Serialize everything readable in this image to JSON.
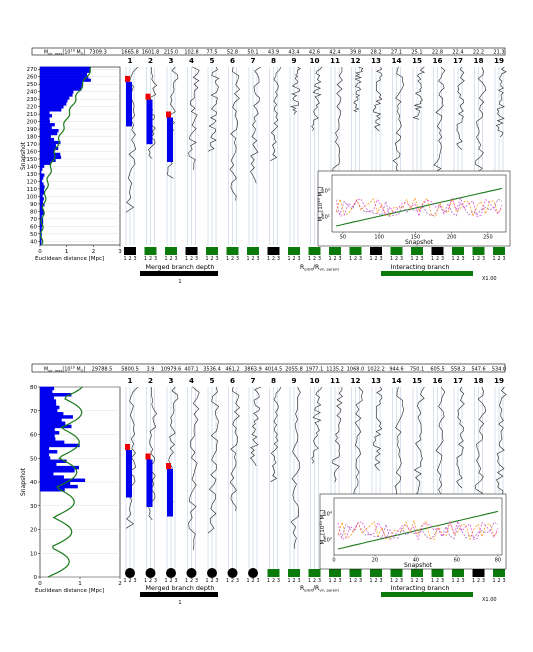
{
  "chart_data": [
    {
      "type": "merger-tree-panel",
      "header_label": "M",
      "header_label_sub": "vir, max",
      "header_unit": "[10",
      "header_unit_exp": "10",
      "header_unit_tail": " M",
      "header_unit_sun": "⊙",
      "header_close": "]",
      "header_values": [
        "7309.3",
        "1665.8",
        "1601.8",
        "215.0",
        "102.8",
        "77.5",
        "52.8",
        "50.1",
        "43.9",
        "43.4",
        "42.6",
        "42.4",
        "39.8",
        "28.2",
        "27.1",
        "25.1",
        "22.8",
        "22.4",
        "22.2",
        "21.3"
      ],
      "branch_numbers": [
        "1",
        "2",
        "3",
        "4",
        "5",
        "6",
        "7",
        "8",
        "9",
        "10",
        "11",
        "12",
        "13",
        "14",
        "15",
        "16",
        "17",
        "18",
        "19"
      ],
      "ylabel": "Snapshot",
      "y_ticks": [
        "40",
        "50",
        "60",
        "70",
        "80",
        "90",
        "100",
        "110",
        "120",
        "130",
        "140",
        "150",
        "160",
        "170",
        "180",
        "190",
        "200",
        "210",
        "220",
        "230",
        "240",
        "250",
        "260",
        "270"
      ],
      "ylim": [
        35,
        273
      ],
      "xlabel": "Euclidean distance [Mpc]",
      "x_ticks": [
        "0",
        "1",
        "2",
        "3"
      ],
      "xlim": [
        0,
        3
      ],
      "orbit_ticks": [
        "1",
        "2",
        "3"
      ],
      "orbit_label": "R",
      "orbit_label_sub": "orbit",
      "orbit_label_mid": "/R",
      "orbit_label_sub2": "vir, parent",
      "merge_markers": [
        "square",
        "square",
        "square",
        "square",
        "square",
        "square",
        "square",
        "square",
        "square",
        "square",
        "square",
        "square",
        "square",
        "square",
        "square",
        "square",
        "square",
        "square",
        "square"
      ],
      "merge_colors": [
        "#000000",
        "#0a7a0a",
        "#0a7a0a",
        "#000000",
        "#0a7a0a",
        "#0a7a0a",
        "#0a7a0a",
        "#000000",
        "#0a7a0a",
        "#0a7a0a",
        "#0a7a0a",
        "#0a7a0a",
        "#000000",
        "#0a7a0a",
        "#0a7a0a",
        "#000000",
        "#0a7a0a",
        "#0a7a0a",
        "#0a7a0a"
      ],
      "legend_merged": "Merged branch depth",
      "legend_merged_value": "1",
      "legend_interacting": "Interacting branch",
      "legend_interacting_value": "X1.00",
      "inset": {
        "xlabel": "Snapshot",
        "x_ticks": [
          "50",
          "100",
          "150",
          "200",
          "250"
        ],
        "xlim": [
          35,
          275
        ],
        "ylabel": "M",
        "ylabel_sub": "vir",
        "ylabel_unit": "[10",
        "ylabel_exp": "10",
        "ylabel_tail": " M",
        "ylabel_sun": "⊙",
        "ylabel_close": "]",
        "y_ticks": [
          {
            "base": "10",
            "exp": "1"
          },
          {
            "base": "10",
            "exp": "3"
          }
        ],
        "log_y": true,
        "series_colors": [
          "#1a7a1a",
          "#9b59b6",
          "#ff8c00",
          "#e040e0"
        ]
      },
      "distribution_max": 2.6
    },
    {
      "type": "merger-tree-panel",
      "header_label": "M",
      "header_label_sub": "vir, max",
      "header_unit": "[10",
      "header_unit_exp": "10",
      "header_unit_tail": " M",
      "header_unit_sun": "⊙",
      "header_close": "]",
      "header_values": [
        "29788.5",
        "5800.5",
        "3.9",
        "10979.6",
        "407.1",
        "3536.4",
        "461.2",
        "3863.9",
        "4014.5",
        "2055.8",
        "1977.1",
        "1135.2",
        "1068.0",
        "1022.2",
        "944.6",
        "750.1",
        "605.5",
        "558.3",
        "547.6",
        "534.0"
      ],
      "branch_numbers": [
        "1",
        "2",
        "3",
        "4",
        "5",
        "6",
        "7",
        "8",
        "9",
        "10",
        "11",
        "12",
        "13",
        "14",
        "15",
        "16",
        "17",
        "18",
        "19"
      ],
      "ylabel": "Snapshot",
      "y_ticks": [
        "0",
        "10",
        "20",
        "30",
        "40",
        "50",
        "60",
        "70",
        "80"
      ],
      "ylim": [
        0,
        80
      ],
      "xlabel": "Euclidean distance [Mpc]",
      "x_ticks": [
        "0",
        "1",
        "2"
      ],
      "xlim": [
        0,
        2
      ],
      "orbit_ticks": [
        "1",
        "2",
        "3"
      ],
      "orbit_label": "R",
      "orbit_label_sub": "orbit",
      "orbit_label_mid": "/R",
      "orbit_label_sub2": "vir, parent",
      "merge_markers": [
        "circle",
        "circle",
        "circle",
        "circle",
        "circle",
        "circle",
        "circle",
        "square",
        "square",
        "square",
        "square",
        "square",
        "square",
        "square",
        "square",
        "square",
        "square",
        "square",
        "square"
      ],
      "merge_colors": [
        "#000000",
        "#000000",
        "#000000",
        "#000000",
        "#000000",
        "#000000",
        "#000000",
        "#0a7a0a",
        "#0a7a0a",
        "#0a7a0a",
        "#0a7a0a",
        "#0a7a0a",
        "#0a7a0a",
        "#0a7a0a",
        "#0a7a0a",
        "#0a7a0a",
        "#0a7a0a",
        "#000000",
        "#0a7a0a"
      ],
      "legend_merged": "Merged branch depth",
      "legend_merged_value": "1",
      "legend_interacting": "Interacting branch",
      "legend_interacting_value": "X1.00",
      "inset": {
        "xlabel": "Snapshot",
        "x_ticks": [
          "0",
          "20",
          "40",
          "60",
          "80"
        ],
        "xlim": [
          0,
          82
        ],
        "ylabel": "M",
        "ylabel_sub": "vir",
        "ylabel_unit": "[10",
        "ylabel_exp": "10",
        "ylabel_tail": " M",
        "ylabel_sun": "⊙",
        "ylabel_close": "]",
        "y_ticks": [
          {
            "base": "10",
            "exp": "2"
          },
          {
            "base": "10",
            "exp": "4"
          }
        ],
        "log_y": true,
        "series_colors": [
          "#1a7a1a",
          "#9b59b6",
          "#ff8c00",
          "#e040e0"
        ]
      },
      "distribution_max": 1.5
    }
  ],
  "colors": {
    "distribution": "#0000ee",
    "main_line": "#1a7a1a",
    "red": "#ee0000",
    "grid": "#b0c4de",
    "interacting_bar": "#0a7a0a"
  }
}
